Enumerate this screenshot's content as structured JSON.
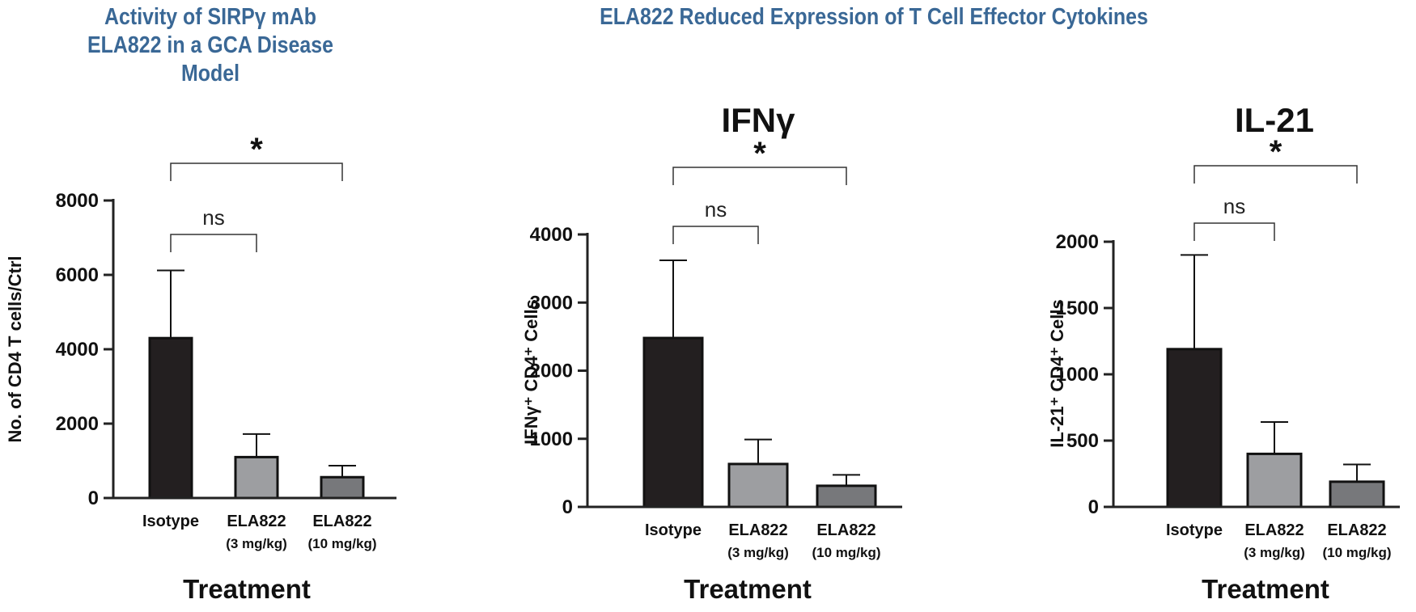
{
  "headers": {
    "left_title": "Activity of SIRPγ mAb ELA822 in a GCA Disease Model",
    "right_title": "ELA822 Reduced Expression of T Cell Effector Cytokines"
  },
  "colors": {
    "title_blue": "#3a6896",
    "isotype_bar": "#231f20",
    "low_dose_bar": "#9d9ea1",
    "high_dose_bar": "#77787b"
  },
  "chart_data": [
    {
      "type": "bar",
      "title": "",
      "xlabel": "Treatment",
      "ylabel": "No. of CD4 T cells/Ctrl",
      "ylim": [
        0,
        8000
      ],
      "yticks": [
        0,
        2000,
        4000,
        6000,
        8000
      ],
      "categories": [
        {
          "name": "Isotype",
          "sub": ""
        },
        {
          "name": "ELA822",
          "sub": "(3 mg/kg)"
        },
        {
          "name": "ELA822",
          "sub": "(10 mg/kg)"
        }
      ],
      "values": [
        4300,
        1100,
        560
      ],
      "errors": [
        1820,
        620,
        310
      ],
      "significance": [
        {
          "from": 0,
          "to": 1,
          "label": "ns"
        },
        {
          "from": 0,
          "to": 2,
          "label": "*"
        }
      ]
    },
    {
      "type": "bar",
      "title": "IFNγ",
      "xlabel": "Treatment",
      "ylabel": "IFNγ⁺ CD4⁺ Cells",
      "ylim": [
        0,
        4000
      ],
      "yticks": [
        0,
        1000,
        2000,
        3000,
        4000
      ],
      "categories": [
        {
          "name": "Isotype",
          "sub": ""
        },
        {
          "name": "ELA822",
          "sub": "(3 mg/kg)"
        },
        {
          "name": "ELA822",
          "sub": "(10 mg/kg)"
        }
      ],
      "values": [
        2480,
        630,
        310
      ],
      "errors": [
        1140,
        360,
        160
      ],
      "significance": [
        {
          "from": 0,
          "to": 1,
          "label": "ns"
        },
        {
          "from": 0,
          "to": 2,
          "label": "*"
        }
      ]
    },
    {
      "type": "bar",
      "title": "IL-21",
      "xlabel": "Treatment",
      "ylabel": "IL-21⁺ CD4⁺ Cells",
      "ylim": [
        0,
        2000
      ],
      "yticks": [
        0,
        500,
        1000,
        1500,
        2000
      ],
      "categories": [
        {
          "name": "Isotype",
          "sub": ""
        },
        {
          "name": "ELA822",
          "sub": "(3 mg/kg)"
        },
        {
          "name": "ELA822",
          "sub": "(10 mg/kg)"
        }
      ],
      "values": [
        1190,
        400,
        190
      ],
      "errors": [
        710,
        240,
        130
      ],
      "significance": [
        {
          "from": 0,
          "to": 1,
          "label": "ns"
        },
        {
          "from": 0,
          "to": 2,
          "label": "*"
        }
      ]
    }
  ]
}
